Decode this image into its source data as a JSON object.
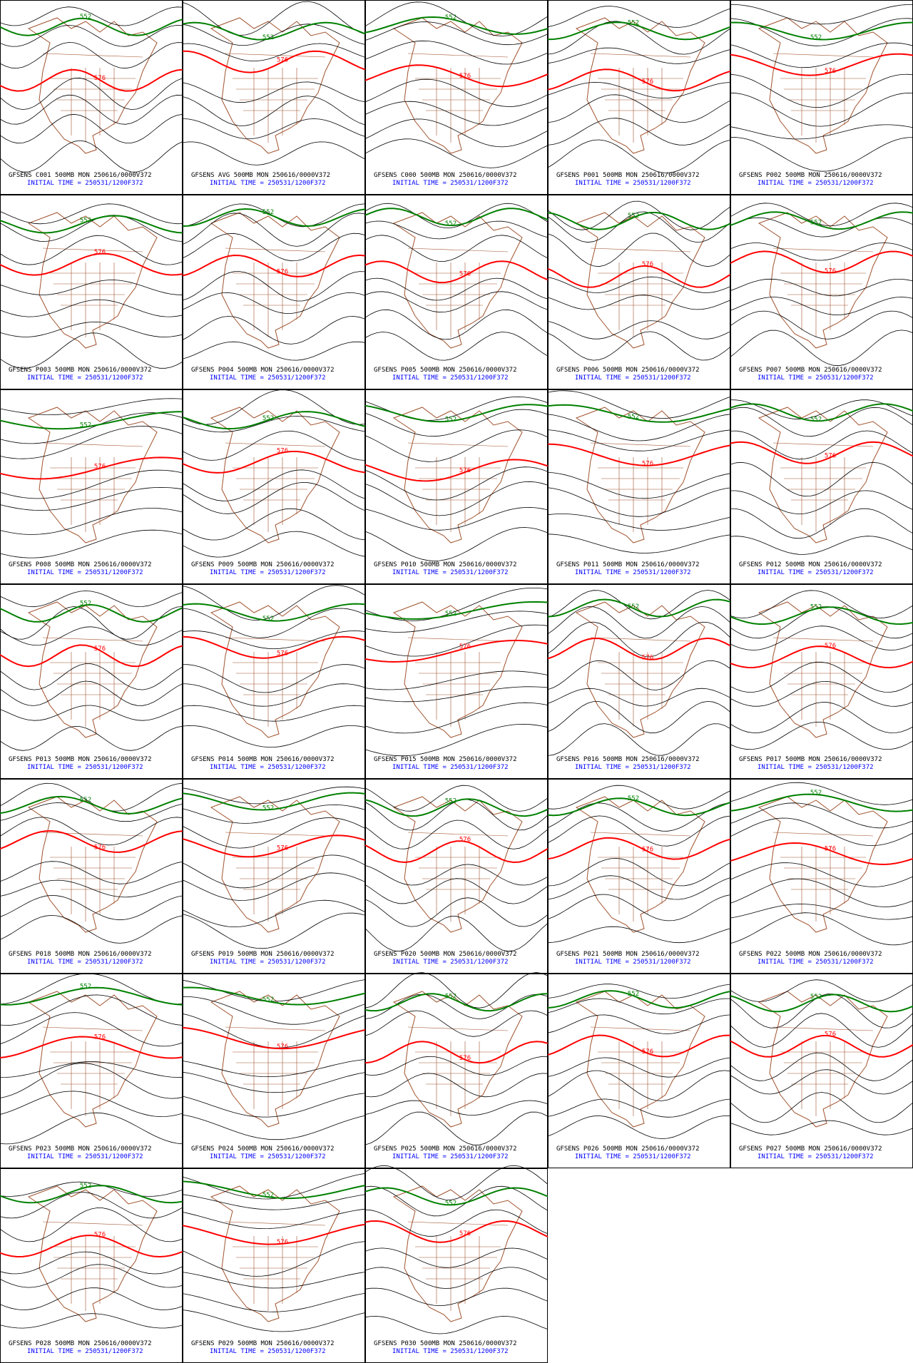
{
  "panels": [
    {
      "title": "GFSENS C001 500MB MON 250616/0000V372",
      "subtitle": "INITIAL TIME = 250531/1200F372",
      "contour_labels": [
        "552",
        "576"
      ]
    },
    {
      "title": "GFSENS AVG 500MB MON 250616/0000V372",
      "subtitle": "INITIAL TIME = 250531/1200F372",
      "contour_labels": [
        "552",
        "576"
      ]
    },
    {
      "title": "GFSENS C000 500MB MON 250616/0000V372",
      "subtitle": "INITIAL TIME = 250531/1200F372",
      "contour_labels": [
        "552",
        "576"
      ]
    },
    {
      "title": "GFSENS P001 500MB MON 250616/0000V372",
      "subtitle": "INITIAL TIME = 250531/1200F372",
      "contour_labels": [
        "552",
        "576"
      ]
    },
    {
      "title": "GFSENS P002 500MB MON 250616/0000V372",
      "subtitle": "INITIAL TIME = 250531/1200F372",
      "contour_labels": [
        "552",
        "576"
      ]
    },
    {
      "title": "GFSENS P003 500MB MON 250616/0000V372",
      "subtitle": "INITIAL TIME = 250531/1200F372",
      "contour_labels": [
        "552",
        "576"
      ]
    },
    {
      "title": "GFSENS P004 500MB MON 250616/0000V372",
      "subtitle": "INITIAL TIME = 250531/1200F372",
      "contour_labels": [
        "552",
        "576"
      ]
    },
    {
      "title": "GFSENS P005 500MB MON 250616/0000V372",
      "subtitle": "INITIAL TIME = 250531/1200F372",
      "contour_labels": [
        "552",
        "576"
      ]
    },
    {
      "title": "GFSENS P006 500MB MON 250616/0000V372",
      "subtitle": "INITIAL TIME = 250531/1200F372",
      "contour_labels": [
        "552",
        "576"
      ]
    },
    {
      "title": "GFSENS P007 500MB MON 250616/0000V372",
      "subtitle": "INITIAL TIME = 250531/1200F372",
      "contour_labels": [
        "552",
        "576"
      ]
    },
    {
      "title": "GFSENS P008 500MB MON 250616/0000V372",
      "subtitle": "INITIAL TIME = 250531/1200F372",
      "contour_labels": [
        "552",
        "576"
      ]
    },
    {
      "title": "GFSENS P009 500MB MON 250616/0000V372",
      "subtitle": "INITIAL TIME = 250531/1200F372",
      "contour_labels": [
        "552",
        "576"
      ]
    },
    {
      "title": "GFSENS P010 500MB MON 250616/0000V372",
      "subtitle": "INITIAL TIME = 250531/1200F372",
      "contour_labels": [
        "552",
        "576"
      ]
    },
    {
      "title": "GFSENS P011 500MB MON 250616/0000V372",
      "subtitle": "INITIAL TIME = 250531/1200F372",
      "contour_labels": [
        "552",
        "576"
      ]
    },
    {
      "title": "GFSENS P012 500MB MON 250616/0000V372",
      "subtitle": "INITIAL TIME = 250531/1200F372",
      "contour_labels": [
        "552",
        "576"
      ]
    },
    {
      "title": "GFSENS P013 500MB MON 250616/0000V372",
      "subtitle": "INITIAL TIME = 250531/1200F372",
      "contour_labels": [
        "552",
        "576"
      ]
    },
    {
      "title": "GFSENS P014 500MB MON 250616/0000V372",
      "subtitle": "INITIAL TIME = 250531/1200F372",
      "contour_labels": [
        "552",
        "576"
      ]
    },
    {
      "title": "GFSENS P015 500MB MON 250616/0000V372",
      "subtitle": "INITIAL TIME = 250531/1200F372",
      "contour_labels": [
        "552",
        "576"
      ]
    },
    {
      "title": "GFSENS P016 500MB MON 250616/0000V372",
      "subtitle": "INITIAL TIME = 250531/1200F372",
      "contour_labels": [
        "552",
        "576"
      ]
    },
    {
      "title": "GFSENS P017 500MB MON 250616/0000V372",
      "subtitle": "INITIAL TIME = 250531/1200F372",
      "contour_labels": [
        "552",
        "576"
      ]
    },
    {
      "title": "GFSENS P018 500MB MON 250616/0000V372",
      "subtitle": "INITIAL TIME = 250531/1200F372",
      "contour_labels": [
        "552",
        "576"
      ]
    },
    {
      "title": "GFSENS P019 500MB MON 250616/0000V372",
      "subtitle": "INITIAL TIME = 250531/1200F372",
      "contour_labels": [
        "552",
        "576"
      ]
    },
    {
      "title": "GFSENS P020 500MB MON 250616/0000V372",
      "subtitle": "INITIAL TIME = 250531/1200F372",
      "contour_labels": [
        "552",
        "576"
      ]
    },
    {
      "title": "GFSENS P021 500MB MON 250616/0000V372",
      "subtitle": "INITIAL TIME = 250531/1200F372",
      "contour_labels": [
        "552",
        "576"
      ]
    },
    {
      "title": "GFSENS P022 500MB MON 250616/0000V372",
      "subtitle": "INITIAL TIME = 250531/1200F372",
      "contour_labels": [
        "552",
        "576"
      ]
    },
    {
      "title": "GFSENS P023 500MB MON 250616/0000V372",
      "subtitle": "INITIAL TIME = 250531/1200F372",
      "contour_labels": [
        "552",
        "576"
      ]
    },
    {
      "title": "GFSENS P024 500MB MON 250616/0000V372",
      "subtitle": "INITIAL TIME = 250531/1200F372",
      "contour_labels": [
        "552",
        "576"
      ]
    },
    {
      "title": "GFSENS P025 500MB MON 250616/0000V372",
      "subtitle": "INITIAL TIME = 250531/1200F372",
      "contour_labels": [
        "552",
        "576"
      ]
    },
    {
      "title": "GFSENS P026 500MB MON 250616/0000V372",
      "subtitle": "INITIAL TIME = 250531/1200F372",
      "contour_labels": [
        "552",
        "576"
      ]
    },
    {
      "title": "GFSENS P027 500MB MON 250616/0000V372",
      "subtitle": "INITIAL TIME = 250531/1200F372",
      "contour_labels": [
        "552",
        "576"
      ]
    },
    {
      "title": "GFSENS P028 500MB MON 250616/0000V372",
      "subtitle": "INITIAL TIME = 250531/1200F372",
      "contour_labels": [
        "552",
        "576"
      ]
    },
    {
      "title": "GFSENS P029 500MB MON 250616/0000V372",
      "subtitle": "INITIAL TIME = 250531/1200F372",
      "contour_labels": [
        "552",
        "576"
      ]
    },
    {
      "title": "GFSENS P030 500MB MON 250616/0000V372",
      "subtitle": "INITIAL TIME = 250531/1200F372",
      "contour_labels": [
        "552",
        "576"
      ]
    }
  ]
}
